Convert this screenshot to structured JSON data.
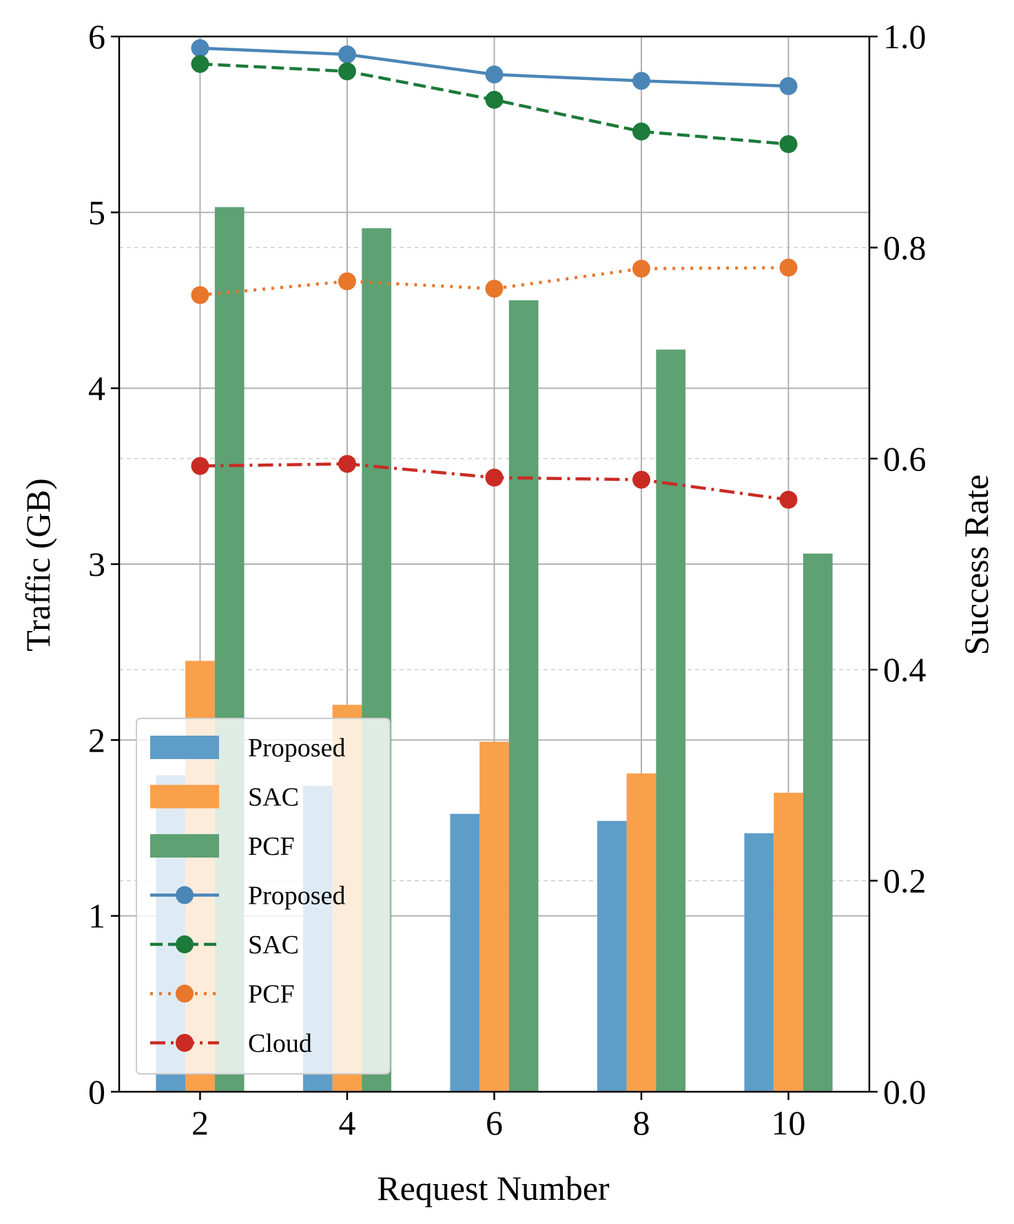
{
  "chart_data": {
    "type": "bar+line",
    "xlabel": "Request Number",
    "ylabel_left": "Traffic (GB)",
    "ylabel_right": "Success Rate",
    "x": [
      2,
      4,
      6,
      8,
      10
    ],
    "xlim": [
      0.9,
      11.1
    ],
    "ylim_left": [
      0,
      6
    ],
    "ylim_right": [
      0.0,
      1.0
    ],
    "xticks": [
      "2",
      "4",
      "6",
      "8",
      "10"
    ],
    "yticks_left": [
      "0",
      "1",
      "2",
      "3",
      "4",
      "5",
      "6"
    ],
    "yticks_right": [
      "0.0",
      "0.2",
      "0.4",
      "0.6",
      "0.8",
      "1.0"
    ],
    "grid": true,
    "legend_position": "lower-left",
    "bar_series": [
      {
        "name": "Proposed",
        "color": "#5f9dc9",
        "values": [
          1.8,
          1.74,
          1.58,
          1.54,
          1.47
        ]
      },
      {
        "name": "SAC",
        "color": "#f9a04b",
        "values": [
          2.45,
          2.2,
          1.99,
          1.81,
          1.7
        ]
      },
      {
        "name": "PCF",
        "color": "#5ea173",
        "values": [
          5.03,
          4.91,
          4.5,
          4.22,
          3.06
        ]
      }
    ],
    "line_series": [
      {
        "name": "Proposed",
        "color": "#4a86b8",
        "style": "solid",
        "values": [
          0.989,
          0.983,
          0.964,
          0.958,
          0.953
        ]
      },
      {
        "name": "SAC",
        "color": "#1c7a3a",
        "style": "dashed",
        "values": [
          0.974,
          0.967,
          0.94,
          0.91,
          0.898
        ]
      },
      {
        "name": "PCF",
        "color": "#e8762b",
        "style": "dotted",
        "values": [
          0.755,
          0.768,
          0.761,
          0.78,
          0.781
        ]
      },
      {
        "name": "Cloud",
        "color": "#c92b24",
        "style": "dashdot",
        "values": [
          0.593,
          0.595,
          0.582,
          0.58,
          0.561
        ]
      }
    ]
  }
}
